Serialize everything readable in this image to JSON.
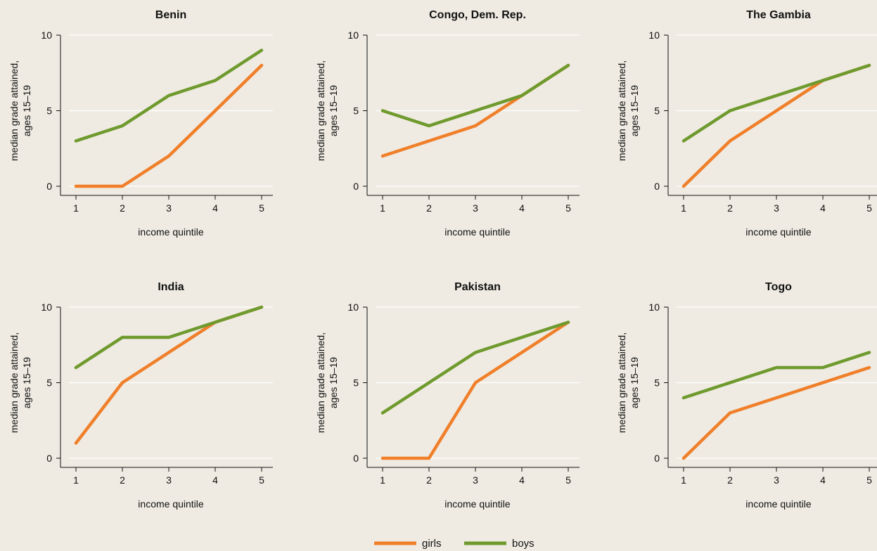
{
  "legend": {
    "items": [
      {
        "label": "girls",
        "color": "#f07f2a"
      },
      {
        "label": "boys",
        "color": "#6f9a2e"
      }
    ],
    "placement": "bottom-center"
  },
  "colors": {
    "background": "#efebe2",
    "girls": "#f07f2a",
    "boys": "#6f9a2e",
    "gridline": "#ffffff",
    "axis": "#111111"
  },
  "chart_data": [
    {
      "type": "line",
      "title": "Benin",
      "xlabel": "income quintile",
      "ylabel": [
        "median grade attained,",
        "ages 15–19"
      ],
      "x": [
        1,
        2,
        3,
        4,
        5
      ],
      "ylim": [
        0,
        10
      ],
      "yticks": [
        0,
        5,
        10
      ],
      "grid": true,
      "series": [
        {
          "name": "girls",
          "values": [
            0,
            0,
            2,
            5,
            8
          ]
        },
        {
          "name": "boys",
          "values": [
            3,
            4,
            6,
            7,
            9
          ]
        }
      ]
    },
    {
      "type": "line",
      "title": "Congo, Dem. Rep.",
      "xlabel": "income quintile",
      "ylabel": [
        "median grade attained,",
        "ages 15–19"
      ],
      "x": [
        1,
        2,
        3,
        4,
        5
      ],
      "ylim": [
        0,
        10
      ],
      "yticks": [
        0,
        5,
        10
      ],
      "grid": true,
      "series": [
        {
          "name": "girls",
          "values": [
            2,
            3,
            4,
            6,
            8
          ]
        },
        {
          "name": "boys",
          "values": [
            5,
            4,
            5,
            6,
            8
          ]
        }
      ]
    },
    {
      "type": "line",
      "title": "The Gambia",
      "xlabel": "income quintile",
      "ylabel": [
        "median grade attained,",
        "ages 15–19"
      ],
      "x": [
        1,
        2,
        3,
        4,
        5
      ],
      "ylim": [
        0,
        10
      ],
      "yticks": [
        0,
        5,
        10
      ],
      "grid": true,
      "series": [
        {
          "name": "girls",
          "values": [
            0,
            3,
            5,
            7,
            8
          ]
        },
        {
          "name": "boys",
          "values": [
            3,
            5,
            6,
            7,
            8
          ]
        }
      ]
    },
    {
      "type": "line",
      "title": "India",
      "xlabel": "income quintile",
      "ylabel": [
        "median grade attained,",
        "ages 15–19"
      ],
      "x": [
        1,
        2,
        3,
        4,
        5
      ],
      "ylim": [
        0,
        10
      ],
      "yticks": [
        0,
        5,
        10
      ],
      "grid": true,
      "series": [
        {
          "name": "girls",
          "values": [
            1,
            5,
            7,
            9,
            10
          ]
        },
        {
          "name": "boys",
          "values": [
            6,
            8,
            8,
            9,
            10
          ]
        }
      ]
    },
    {
      "type": "line",
      "title": "Pakistan",
      "xlabel": "income quintile",
      "ylabel": [
        "median grade attained,",
        "ages 15–19"
      ],
      "x": [
        1,
        2,
        3,
        4,
        5
      ],
      "ylim": [
        0,
        10
      ],
      "yticks": [
        0,
        5,
        10
      ],
      "grid": true,
      "series": [
        {
          "name": "girls",
          "values": [
            0,
            0,
            5,
            7,
            9
          ]
        },
        {
          "name": "boys",
          "values": [
            3,
            5,
            7,
            8,
            9
          ]
        }
      ]
    },
    {
      "type": "line",
      "title": "Togo",
      "xlabel": "income quintile",
      "ylabel": [
        "median grade attained,",
        "ages 15–19"
      ],
      "x": [
        1,
        2,
        3,
        4,
        5
      ],
      "ylim": [
        0,
        10
      ],
      "yticks": [
        0,
        5,
        10
      ],
      "grid": true,
      "series": [
        {
          "name": "girls",
          "values": [
            0,
            3,
            4,
            5,
            6
          ]
        },
        {
          "name": "boys",
          "values": [
            4,
            5,
            6,
            6,
            7
          ]
        }
      ]
    }
  ]
}
